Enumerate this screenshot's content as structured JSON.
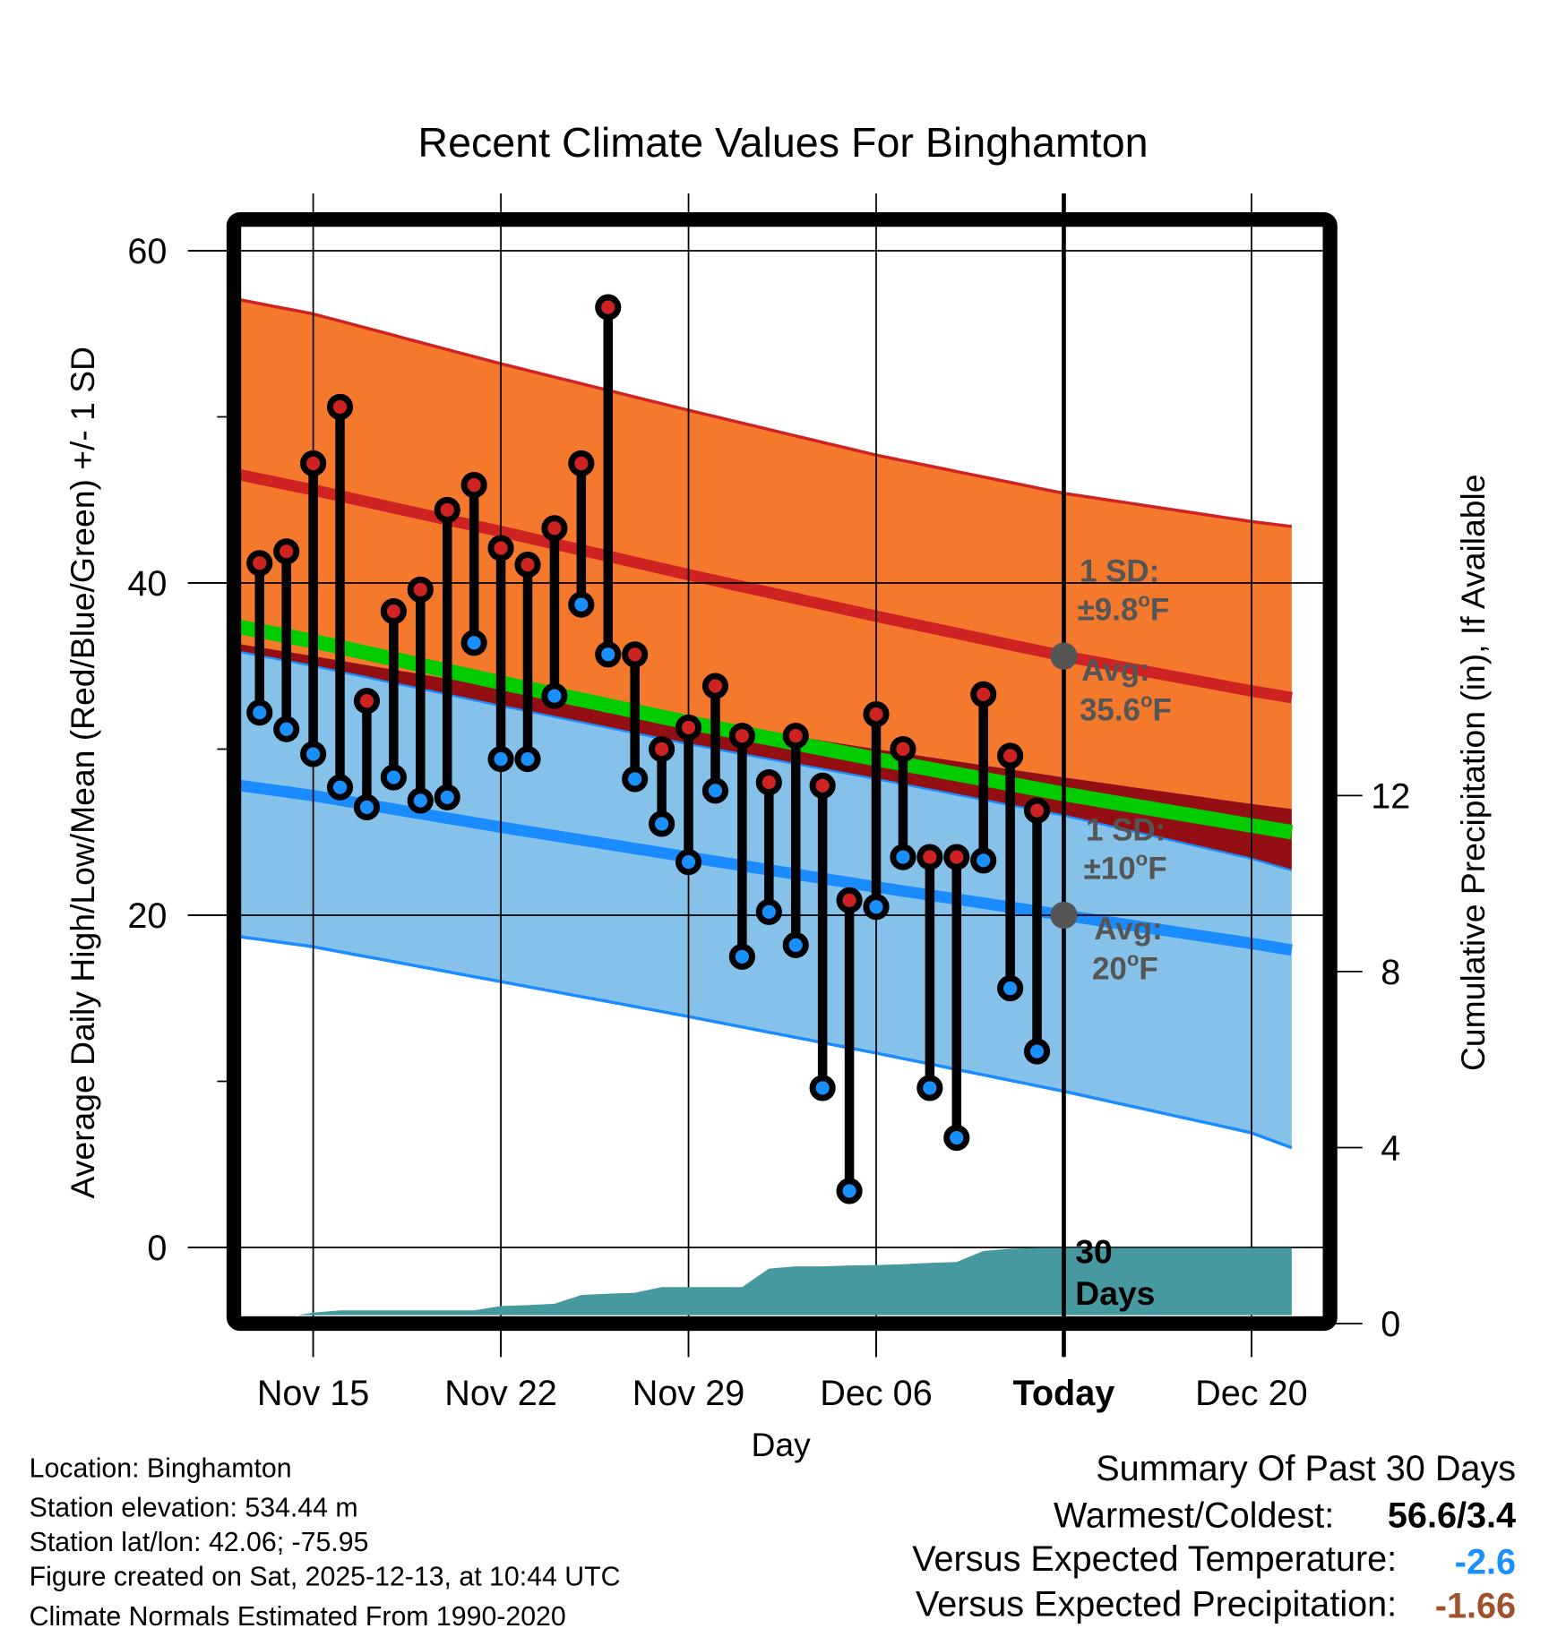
{
  "chart_data": {
    "type": "line",
    "title": "Recent Climate Values For Binghamton",
    "xlabel": "Day",
    "ylabel": "Average Daily High/Low/Mean (Red/Blue/Green) +/- 1 SD",
    "y2label": "Cumulative Precipitation (in), If Available",
    "ylim": [
      -4,
      62
    ],
    "y2lim": [
      0,
      19
    ],
    "yticks": [
      0,
      20,
      40,
      60
    ],
    "yticks_minor": [
      10,
      30,
      50
    ],
    "y2ticks": [
      0,
      4,
      8,
      12
    ],
    "x_range_days": [
      -32.5,
      8.5
    ],
    "xticks": [
      {
        "label": "Nov 15",
        "day": -28
      },
      {
        "label": "Nov 22",
        "day": -21
      },
      {
        "label": "Nov 29",
        "day": -14
      },
      {
        "label": "Dec 06",
        "day": -7
      },
      {
        "label": "Today",
        "day": 0,
        "bold": true
      },
      {
        "label": "Dec 20",
        "day": 7
      }
    ],
    "grid": true,
    "normals": {
      "days": [
        -32.5,
        -28,
        -21,
        -14,
        -7,
        0,
        7,
        8.5
      ],
      "high_avg": [
        47.1,
        45.6,
        43.1,
        40.5,
        38.0,
        35.6,
        33.5,
        33.1
      ],
      "high_upper": [
        57.6,
        56.2,
        53.2,
        50.4,
        47.7,
        45.4,
        43.7,
        43.4
      ],
      "high_lower": [
        36.8,
        35.6,
        33.7,
        31.8,
        30.0,
        28.3,
        26.7,
        26.4
      ],
      "mean_avg": [
        37.9,
        36.5,
        34.0,
        31.6,
        29.4,
        27.3,
        25.4,
        25.0
      ],
      "low_avg": [
        28.2,
        27.2,
        25.3,
        23.5,
        21.7,
        20.0,
        18.3,
        17.9
      ],
      "low_upper": [
        36.4,
        35.0,
        32.6,
        30.3,
        28.2,
        26.0,
        23.4,
        22.7
      ],
      "low_lower": [
        19.1,
        18.1,
        16.0,
        13.9,
        11.7,
        9.4,
        6.9,
        6.0
      ]
    },
    "daily": {
      "labels": [
        "Nov 13",
        "Nov 14",
        "Nov 15",
        "Nov 16",
        "Nov 17",
        "Nov 18",
        "Nov 19",
        "Nov 20",
        "Nov 21",
        "Nov 22",
        "Nov 23",
        "Nov 24",
        "Nov 25",
        "Nov 26",
        "Nov 27",
        "Nov 28",
        "Nov 29",
        "Nov 30",
        "Dec 01",
        "Dec 02",
        "Dec 03",
        "Dec 04",
        "Dec 05",
        "Dec 06",
        "Dec 07",
        "Dec 08",
        "Dec 09",
        "Dec 10",
        "Dec 11",
        "Dec 12"
      ],
      "days": [
        -30,
        -29,
        -28,
        -27,
        -26,
        -25,
        -24,
        -23,
        -22,
        -21,
        -20,
        -19,
        -18,
        -17,
        -16,
        -15,
        -14,
        -13,
        -12,
        -11,
        -10,
        -9,
        -8,
        -7,
        -6,
        -5,
        -4,
        -3,
        -2,
        -1
      ],
      "high": [
        41.2,
        41.9,
        47.2,
        50.6,
        32.9,
        38.3,
        39.6,
        44.4,
        45.9,
        42.1,
        41.1,
        43.3,
        47.2,
        56.6,
        35.7,
        30.0,
        31.3,
        33.8,
        30.8,
        28.0,
        30.8,
        27.8,
        20.9,
        32.1,
        30.0,
        23.5,
        23.5,
        33.3,
        29.6,
        26.3
      ],
      "low": [
        32.2,
        31.2,
        29.7,
        27.7,
        26.5,
        28.3,
        26.9,
        27.1,
        36.4,
        29.4,
        29.4,
        33.2,
        38.7,
        35.7,
        28.2,
        25.5,
        23.2,
        27.5,
        17.5,
        20.2,
        18.2,
        9.6,
        3.4,
        20.5,
        23.5,
        9.6,
        6.6,
        23.3,
        15.6,
        11.8
      ]
    },
    "precip_cumulative": {
      "days": [
        -32.5,
        -30.5,
        -29,
        -28,
        -27,
        -26,
        -25,
        -24,
        -23,
        -22,
        -21,
        -20,
        -19,
        -18,
        -17,
        -16,
        -15,
        -14,
        -13,
        -12,
        -11,
        -10,
        -9,
        -8,
        -7,
        -6,
        -5,
        -4,
        -3,
        -2,
        -1,
        0,
        8.5
      ],
      "values": [
        0,
        0,
        0.15,
        0.25,
        0.3,
        0.3,
        0.3,
        0.3,
        0.3,
        0.3,
        0.4,
        0.42,
        0.45,
        0.65,
        0.68,
        0.7,
        0.83,
        0.83,
        0.83,
        0.83,
        1.25,
        1.3,
        1.3,
        1.32,
        1.33,
        1.35,
        1.38,
        1.4,
        1.65,
        1.7,
        1.72,
        1.72,
        1.72
      ]
    },
    "annotations": {
      "high_sd_line1": "1 SD:",
      "high_sd_line2": "±9.8",
      "high_avg_line1": "Avg:",
      "high_avg_line2": "35.6",
      "low_sd_line1": "1 SD:",
      "low_sd_line2": "±10",
      "low_avg_line1": "Avg:",
      "low_avg_line2": "20",
      "degree_o": "o",
      "unit_F": "F",
      "days_line1": "30",
      "days_line2": "Days",
      "high_avg_today": 35.6,
      "low_avg_today": 20
    },
    "colors": {
      "high_band": "#f5792d",
      "high_line": "#cf2323",
      "mean_band": "#940f14",
      "mean_line": "#00cc00",
      "low_band": "#85c1e8",
      "low_line": "#1a8cff",
      "high_marker": "#cf2323",
      "low_marker": "#1a90ff",
      "precip": "#46999e",
      "annotation": "#555555"
    }
  },
  "info": {
    "location": "Location: Binghamton",
    "elevation": "Station elevation: 534.44 m",
    "latlon": "Station lat/lon: 42.06; -75.95",
    "created": "Figure created on Sat, 2025-12-13, at 10:44 UTC",
    "normals": "Climate Normals Estimated From 1990-2020"
  },
  "summary": {
    "title": "Summary Of Past 30 Days",
    "warmest_coldest_label": "Warmest/Coldest:",
    "warmest_coldest_value": "56.6/3.4",
    "temp_label": "Versus Expected Temperature:",
    "temp_value": "-2.6",
    "temp_color": "#1a90ff",
    "precip_label": "Versus Expected Precipitation:",
    "precip_value": "-1.66",
    "precip_color": "#a0522d"
  }
}
